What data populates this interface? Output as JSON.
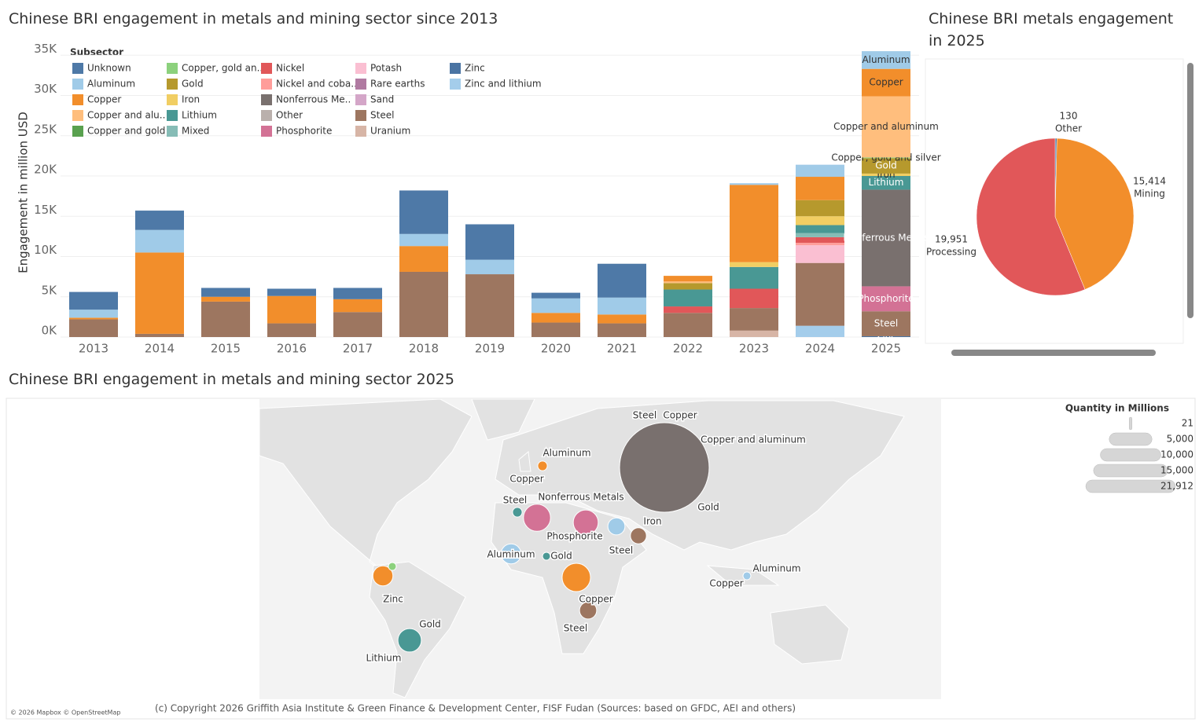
{
  "chart_data": [
    {
      "type": "stacked-bar",
      "title": "Chinese BRI engagement in metals and mining sector since 2013",
      "y_label": "Engagement in million USD",
      "legend_title": "Subsector",
      "grid": true,
      "label_last_category": true,
      "categories": [
        "2013",
        "2014",
        "2015",
        "2016",
        "2017",
        "2018",
        "2019",
        "2020",
        "2021",
        "2022",
        "2023",
        "2024",
        "2025"
      ],
      "ylim": [
        0,
        36000
      ],
      "yticks": [
        {
          "value": 0,
          "label": "0K"
        },
        {
          "value": 5000,
          "label": "5K"
        },
        {
          "value": 10000,
          "label": "10K"
        },
        {
          "value": 15000,
          "label": "15K"
        },
        {
          "value": 20000,
          "label": "20K"
        },
        {
          "value": 25000,
          "label": "25K"
        },
        {
          "value": 30000,
          "label": "30K"
        },
        {
          "value": 35000,
          "label": "35K"
        }
      ],
      "series": [
        {
          "name": "Unknown",
          "color": "#4e79a7",
          "values": [
            2200,
            2400,
            1100,
            900,
            1400,
            5400,
            4400,
            700,
            4200,
            0,
            0,
            0,
            0
          ]
        },
        {
          "name": "Aluminum",
          "color": "#a0cbe8",
          "values": [
            1000,
            2800,
            0,
            0,
            0,
            1500,
            1800,
            1800,
            2100,
            0,
            200,
            1500,
            2200
          ]
        },
        {
          "name": "Copper",
          "color": "#f28e2b",
          "values": [
            200,
            10100,
            600,
            3400,
            1600,
            3200,
            0,
            1200,
            1100,
            700,
            9600,
            2900,
            3400
          ]
        },
        {
          "name": "Copper and aluminum",
          "legend_label": "Copper and alu..",
          "color": "#ffbe7d",
          "values": [
            0,
            0,
            0,
            0,
            0,
            0,
            0,
            0,
            0,
            200,
            0,
            0,
            7600
          ]
        },
        {
          "name": "Copper and gold",
          "color": "#59a14f",
          "values": [
            0,
            0,
            0,
            0,
            0,
            0,
            0,
            0,
            0,
            0,
            0,
            0,
            0
          ]
        },
        {
          "name": "Copper, gold and silver",
          "legend_label": "Copper, gold an..",
          "color": "#8cd17d",
          "values": [
            0,
            0,
            0,
            0,
            0,
            0,
            0,
            0,
            0,
            0,
            0,
            0,
            100
          ]
        },
        {
          "name": "Gold",
          "color": "#b6992d",
          "values": [
            0,
            0,
            0,
            0,
            0,
            0,
            0,
            0,
            0,
            800,
            0,
            2000,
            1900
          ]
        },
        {
          "name": "Iron",
          "color": "#f1ce63",
          "values": [
            0,
            0,
            0,
            0,
            0,
            0,
            0,
            0,
            0,
            0,
            600,
            1100,
            300
          ]
        },
        {
          "name": "Lithium",
          "color": "#499894",
          "values": [
            0,
            0,
            0,
            0,
            0,
            0,
            0,
            0,
            0,
            2100,
            2700,
            1000,
            1700
          ]
        },
        {
          "name": "Mixed",
          "color": "#86bcb6",
          "values": [
            0,
            0,
            0,
            0,
            0,
            0,
            0,
            0,
            0,
            0,
            0,
            500,
            0
          ]
        },
        {
          "name": "Nickel",
          "color": "#e15759",
          "values": [
            0,
            0,
            0,
            0,
            0,
            0,
            0,
            0,
            0,
            800,
            2400,
            700,
            0
          ]
        },
        {
          "name": "Nickel and coba..",
          "color": "#ff9d9a",
          "values": [
            0,
            0,
            0,
            0,
            0,
            0,
            0,
            0,
            0,
            0,
            0,
            300,
            0
          ]
        },
        {
          "name": "Nonferrous Metals",
          "legend_label": "Nonferrous Me..",
          "color": "#79706e",
          "values": [
            0,
            0,
            0,
            0,
            0,
            0,
            0,
            0,
            0,
            0,
            0,
            0,
            12000
          ]
        },
        {
          "name": "Other",
          "color": "#bab0ac",
          "values": [
            0,
            0,
            0,
            0,
            0,
            0,
            0,
            0,
            0,
            0,
            0,
            0,
            0
          ]
        },
        {
          "name": "Phosphorite",
          "color": "#d37295",
          "values": [
            0,
            0,
            0,
            0,
            0,
            0,
            0,
            0,
            0,
            0,
            0,
            0,
            3100
          ]
        },
        {
          "name": "Potash",
          "color": "#fabfd2",
          "values": [
            0,
            0,
            0,
            0,
            0,
            0,
            0,
            0,
            0,
            0,
            0,
            2200,
            0
          ]
        },
        {
          "name": "Rare earths",
          "color": "#b07aa1",
          "values": [
            0,
            0,
            0,
            0,
            0,
            0,
            0,
            0,
            0,
            0,
            0,
            0,
            0
          ]
        },
        {
          "name": "Sand",
          "color": "#d4a6c8",
          "values": [
            0,
            0,
            0,
            0,
            0,
            0,
            0,
            0,
            0,
            0,
            0,
            0,
            0
          ]
        },
        {
          "name": "Steel",
          "color": "#9d7660",
          "values": [
            2200,
            400,
            4400,
            1700,
            3100,
            8100,
            7800,
            1800,
            1700,
            3000,
            2800,
            7800,
            3100
          ]
        },
        {
          "name": "Uranium",
          "color": "#d7b5a6",
          "values": [
            0,
            0,
            0,
            0,
            0,
            0,
            0,
            0,
            0,
            0,
            800,
            0,
            0
          ]
        },
        {
          "name": "Zinc",
          "color": "#4a74a3",
          "values": [
            0,
            0,
            0,
            0,
            0,
            0,
            0,
            0,
            0,
            0,
            0,
            0,
            100
          ]
        },
        {
          "name": "Zinc and lithium",
          "color": "#a4cdeb",
          "values": [
            0,
            0,
            0,
            0,
            0,
            0,
            0,
            0,
            0,
            0,
            0,
            1400,
            0
          ]
        }
      ]
    },
    {
      "type": "pie",
      "title": "Chinese BRI metals engagement in 2025",
      "categories": [
        "Other",
        "Mining",
        "Processing"
      ],
      "values": [
        130,
        15414,
        19951
      ],
      "value_labels": [
        "130",
        "15,414",
        "19,951"
      ],
      "colors": [
        "#4e79a7",
        "#f28e2b",
        "#e15759"
      ]
    },
    {
      "type": "bubble-map",
      "title": "Chinese BRI engagement in metals and mining sector 2025",
      "attribution": "© 2026 Mapbox © OpenStreetMap",
      "copyright": "(c) Copyright 2026 Griffith Asia Institute & Green Finance & Development Center, FISF Fudan (Sources: based on GFDC, AEI and others)",
      "size_legend": {
        "title": "Quantity in Millions",
        "items": [
          {
            "value": 21,
            "label": "21"
          },
          {
            "value": 5000,
            "label": "5,000"
          },
          {
            "value": 10000,
            "label": "10,000"
          },
          {
            "value": 15000,
            "label": "15,000"
          },
          {
            "value": 21912,
            "label": "21,912"
          }
        ]
      },
      "points": [
        {
          "labels": [
            "Steel",
            "Copper",
            "Copper and aluminum",
            "Gold"
          ],
          "value": 21912,
          "color": "#79706e"
        },
        {
          "labels": [
            "Aluminum",
            "Copper"
          ],
          "value": 250,
          "color": "#f28e2b"
        },
        {
          "labels": [
            "Steel"
          ],
          "value": 250,
          "color": "#499894"
        },
        {
          "labels": [
            "Nonferrous Metals"
          ],
          "value": 2000,
          "color": "#d37295"
        },
        {
          "labels": [
            "Phosphorite"
          ],
          "value": 1700,
          "color": "#d37295"
        },
        {
          "labels": [],
          "value": 800,
          "color": "#a0cbe8"
        },
        {
          "labels": [
            "Iron",
            "Steel"
          ],
          "value": 700,
          "color": "#9d7660"
        },
        {
          "labels": [
            "Aluminum"
          ],
          "value": 1100,
          "color": "#a0cbe8"
        },
        {
          "labels": [
            "Gold"
          ],
          "value": 170,
          "color": "#499894"
        },
        {
          "labels": [],
          "value": 1100,
          "color": "#f28e2b"
        },
        {
          "labels": [],
          "value": 170,
          "color": "#8cd17d"
        },
        {
          "labels": [
            "Zinc"
          ],
          "value": 60,
          "color": "#4e79a7"
        },
        {
          "labels": [],
          "value": 2200,
          "color": "#f28e2b"
        },
        {
          "labels": [
            "Copper",
            "Steel"
          ],
          "value": 800,
          "color": "#9d7660"
        },
        {
          "labels": [
            "Gold",
            "Lithium"
          ],
          "value": 1500,
          "color": "#499894"
        },
        {
          "labels": [
            "Aluminum",
            "Copper"
          ],
          "value": 170,
          "color": "#a0cbe8"
        }
      ]
    }
  ]
}
